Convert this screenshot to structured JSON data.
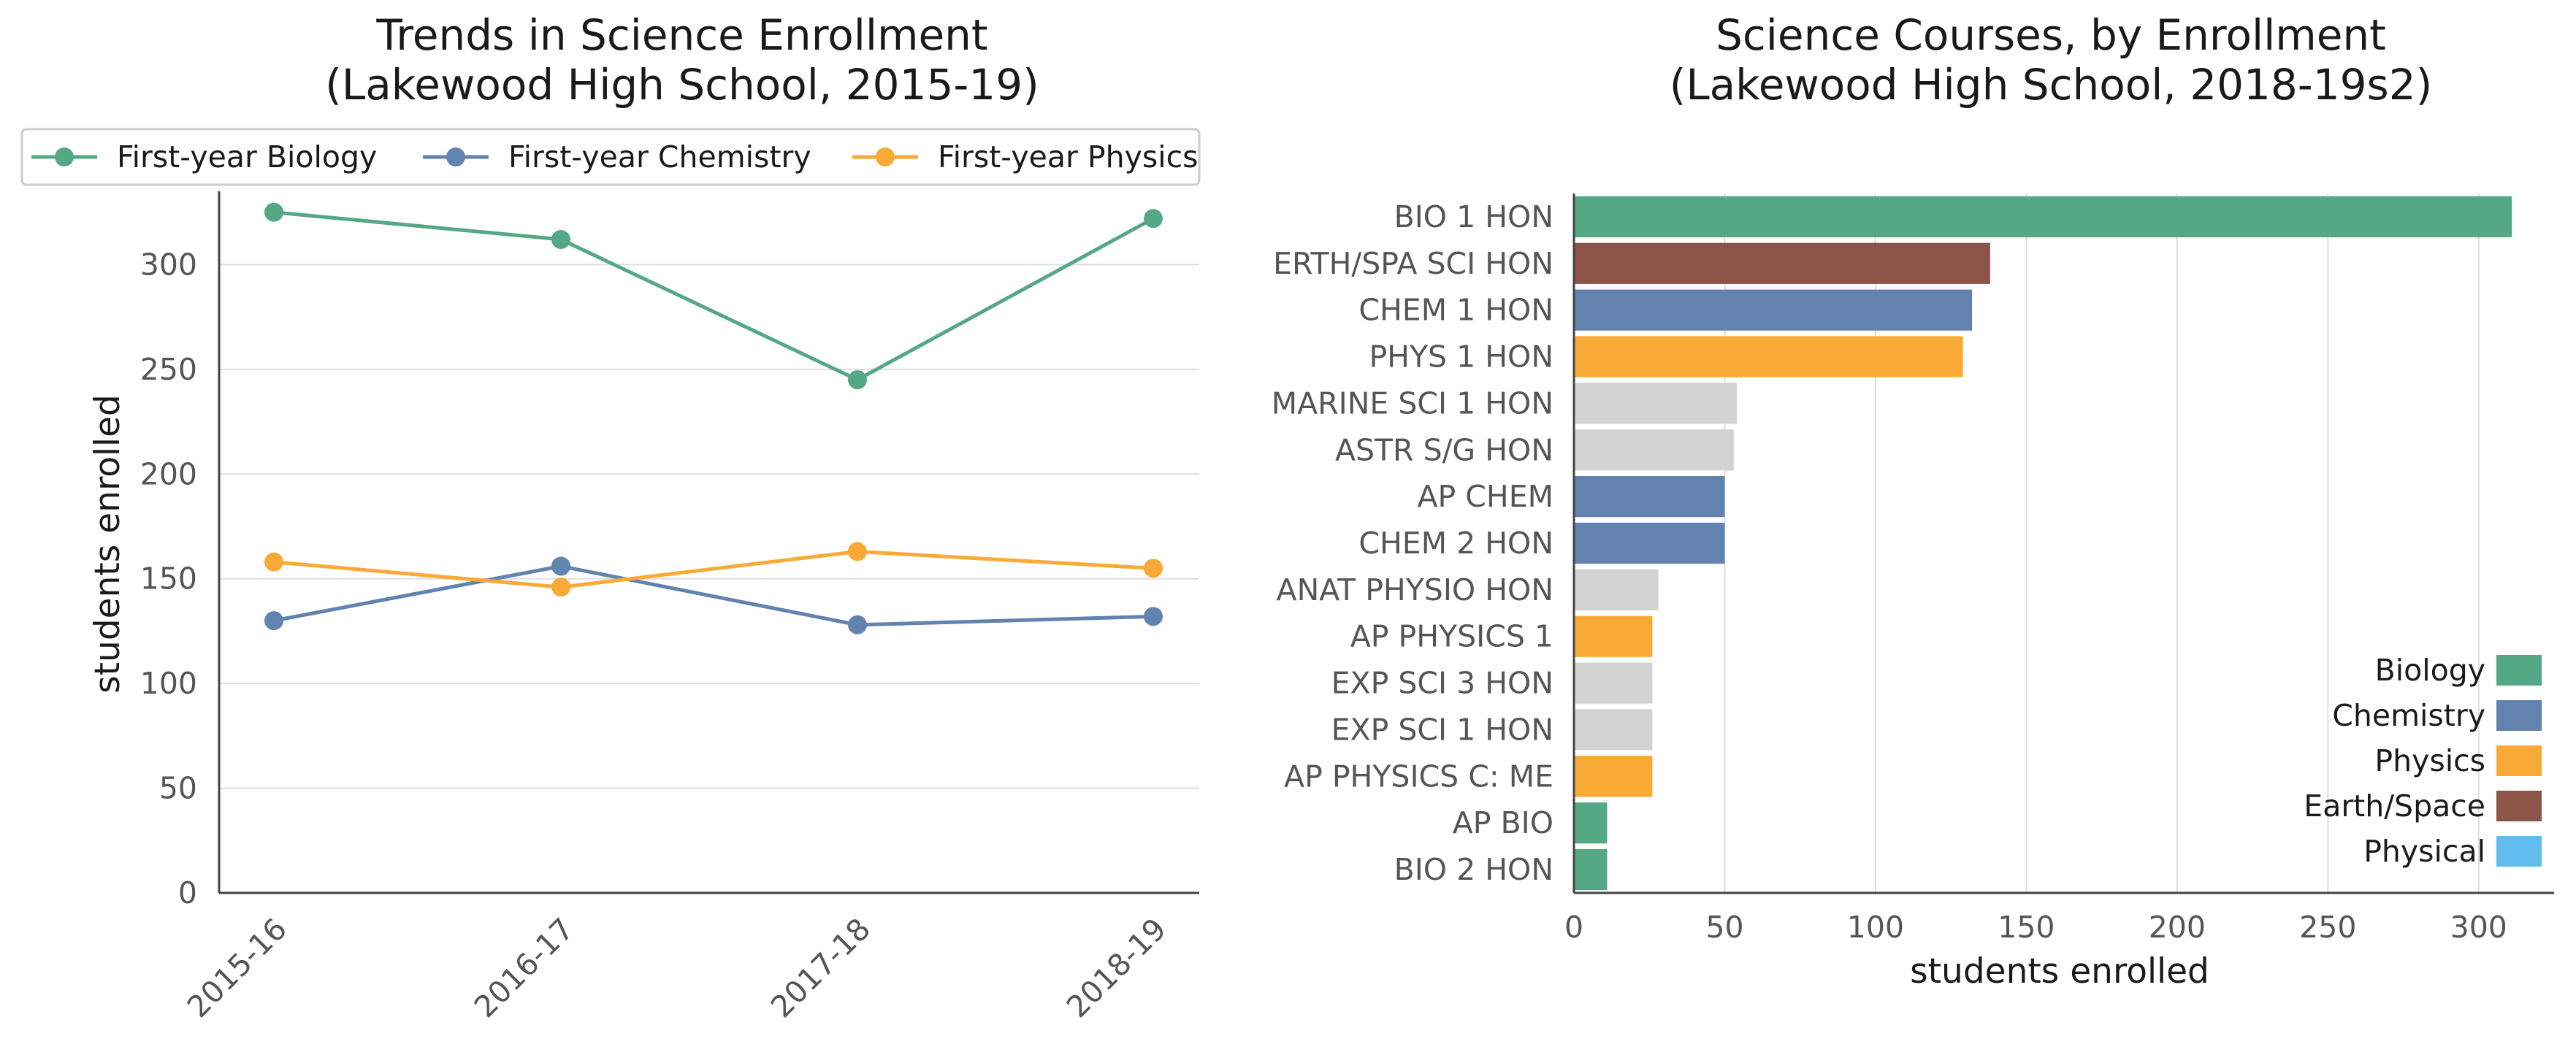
{
  "chart_data": [
    {
      "type": "line",
      "title_line1": "Trends in Science Enrollment",
      "title_line2": "(Lakewood High School, 2015-19)",
      "categories": [
        "2015-16",
        "2016-17",
        "2017-18",
        "2018-19"
      ],
      "ylabel": "students enrolled",
      "ylim": [
        0,
        335
      ],
      "yticks": [
        0,
        50,
        100,
        150,
        200,
        250,
        300
      ],
      "grid": "horizontal",
      "legend_placement": "top",
      "series": [
        {
          "name": "First-year Biology",
          "color": "#55a885",
          "values": [
            325,
            312,
            245,
            322
          ]
        },
        {
          "name": "First-year Chemistry",
          "color": "#6282b0",
          "values": [
            130,
            156,
            128,
            132
          ]
        },
        {
          "name": "First-year Physics",
          "color": "#f9aa36",
          "values": [
            158,
            146,
            163,
            155
          ]
        }
      ]
    },
    {
      "type": "bar",
      "orientation": "horizontal",
      "title_line1": "Science Courses, by Enrollment",
      "title_line2": "(Lakewood High School, 2018-19s2)",
      "xlabel": "students enrolled",
      "xlim": [
        0,
        325
      ],
      "xticks": [
        0,
        50,
        100,
        150,
        200,
        250,
        300
      ],
      "grid": "vertical",
      "legend_placement": "bottom-right",
      "categories": [
        "BIO 1 HON",
        "ERTH/SPA SCI HON",
        "CHEM 1 HON",
        "PHYS 1 HON",
        "MARINE SCI 1 HON",
        "ASTR S/G HON",
        "AP CHEM",
        "CHEM 2 HON",
        "ANAT PHYSIO HON",
        "AP PHYSICS 1",
        "EXP SCI 3 HON",
        "EXP SCI 1 HON",
        "AP PHYSICS C: ME",
        "AP BIO",
        "BIO 2 HON"
      ],
      "values": [
        311,
        138,
        132,
        129,
        54,
        53,
        50,
        50,
        28,
        26,
        26,
        26,
        26,
        11,
        11
      ],
      "bar_group": [
        "Biology",
        "Earth/Space",
        "Chemistry",
        "Physics",
        "Other",
        "Other",
        "Chemistry",
        "Chemistry",
        "Other",
        "Physics",
        "Other",
        "Other",
        "Physics",
        "Biology",
        "Biology"
      ],
      "group_colors": {
        "Biology": "#55a885",
        "Chemistry": "#6282b0",
        "Physics": "#f9aa36",
        "Earth/Space": "#8c5349",
        "Physical": "#62bdee",
        "Other": "#d3d3d3"
      },
      "legend": [
        "Biology",
        "Chemistry",
        "Physics",
        "Earth/Space",
        "Physical"
      ]
    }
  ]
}
